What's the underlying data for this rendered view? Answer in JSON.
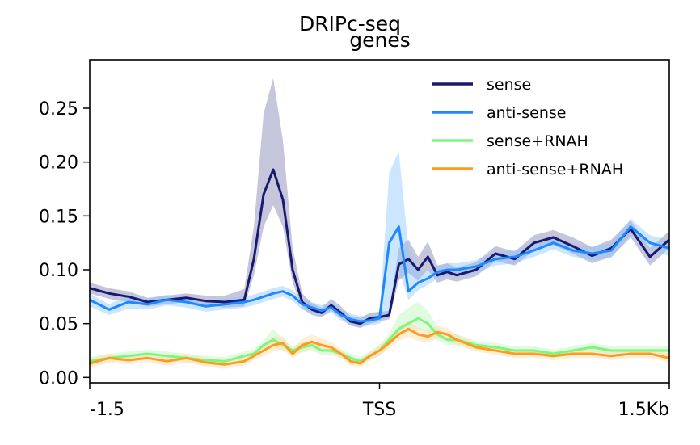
{
  "chart_data": {
    "type": "line",
    "title": "DRIPc-seq",
    "subtitle": "genes",
    "xlabel": "",
    "ylabel": "",
    "xlim": [
      -1.5,
      1.5
    ],
    "ylim": [
      -0.005,
      0.295
    ],
    "x_ticks": [
      {
        "value": -1.5,
        "label": "-1.5"
      },
      {
        "value": 0,
        "label": "TSS"
      },
      {
        "value": 1.5,
        "label": "1.5Kb"
      }
    ],
    "y_ticks": [
      {
        "value": 0.0,
        "label": "0.00"
      },
      {
        "value": 0.05,
        "label": "0.05"
      },
      {
        "value": 0.1,
        "label": "0.10"
      },
      {
        "value": 0.15,
        "label": "0.15"
      },
      {
        "value": 0.2,
        "label": "0.20"
      },
      {
        "value": 0.25,
        "label": "0.25"
      }
    ],
    "grid": false,
    "legend_position": "top-right",
    "x": [
      -1.5,
      -1.4,
      -1.3,
      -1.2,
      -1.1,
      -1.0,
      -0.9,
      -0.8,
      -0.7,
      -0.65,
      -0.6,
      -0.55,
      -0.5,
      -0.45,
      -0.4,
      -0.35,
      -0.3,
      -0.25,
      -0.2,
      -0.15,
      -0.1,
      -0.05,
      0.0,
      0.05,
      0.1,
      0.15,
      0.2,
      0.25,
      0.3,
      0.35,
      0.4,
      0.5,
      0.6,
      0.7,
      0.8,
      0.9,
      1.0,
      1.1,
      1.2,
      1.3,
      1.4,
      1.5
    ],
    "series": [
      {
        "name": "sense",
        "color": "#191970",
        "band_color": "#191970",
        "values": [
          0.083,
          0.078,
          0.075,
          0.07,
          0.072,
          0.074,
          0.071,
          0.07,
          0.072,
          0.11,
          0.17,
          0.193,
          0.165,
          0.1,
          0.07,
          0.063,
          0.06,
          0.067,
          0.06,
          0.052,
          0.05,
          0.055,
          0.056,
          0.058,
          0.105,
          0.11,
          0.1,
          0.112,
          0.095,
          0.098,
          0.095,
          0.1,
          0.115,
          0.11,
          0.125,
          0.13,
          0.122,
          0.113,
          0.12,
          0.138,
          0.112,
          0.128
        ],
        "lower": [
          0.078,
          0.073,
          0.07,
          0.066,
          0.068,
          0.07,
          0.067,
          0.065,
          0.066,
          0.095,
          0.14,
          0.16,
          0.14,
          0.088,
          0.064,
          0.058,
          0.056,
          0.062,
          0.055,
          0.048,
          0.046,
          0.05,
          0.052,
          0.054,
          0.09,
          0.097,
          0.09,
          0.1,
          0.088,
          0.091,
          0.089,
          0.094,
          0.108,
          0.104,
          0.118,
          0.123,
          0.115,
          0.106,
          0.112,
          0.13,
          0.104,
          0.12
        ],
        "upper": [
          0.088,
          0.083,
          0.08,
          0.074,
          0.076,
          0.078,
          0.076,
          0.076,
          0.082,
          0.14,
          0.245,
          0.278,
          0.22,
          0.12,
          0.078,
          0.069,
          0.065,
          0.073,
          0.066,
          0.057,
          0.055,
          0.06,
          0.061,
          0.062,
          0.12,
          0.128,
          0.112,
          0.126,
          0.104,
          0.106,
          0.102,
          0.107,
          0.122,
          0.117,
          0.132,
          0.137,
          0.13,
          0.121,
          0.128,
          0.146,
          0.12,
          0.136
        ]
      },
      {
        "name": "anti-sense",
        "color": "#1e88ff",
        "band_color": "#8ec8ff",
        "values": [
          0.072,
          0.063,
          0.07,
          0.068,
          0.072,
          0.07,
          0.066,
          0.068,
          0.07,
          0.072,
          0.075,
          0.078,
          0.08,
          0.076,
          0.068,
          0.065,
          0.062,
          0.065,
          0.058,
          0.054,
          0.052,
          0.053,
          0.055,
          0.125,
          0.14,
          0.08,
          0.088,
          0.092,
          0.098,
          0.1,
          0.1,
          0.103,
          0.11,
          0.112,
          0.118,
          0.125,
          0.118,
          0.115,
          0.118,
          0.14,
          0.125,
          0.12
        ],
        "lower": [
          0.066,
          0.058,
          0.064,
          0.063,
          0.067,
          0.065,
          0.061,
          0.063,
          0.065,
          0.067,
          0.07,
          0.073,
          0.075,
          0.071,
          0.063,
          0.06,
          0.057,
          0.06,
          0.053,
          0.049,
          0.047,
          0.048,
          0.05,
          0.06,
          0.1,
          0.072,
          0.081,
          0.086,
          0.092,
          0.094,
          0.094,
          0.097,
          0.104,
          0.106,
          0.112,
          0.119,
          0.112,
          0.109,
          0.111,
          0.133,
          0.118,
          0.113
        ],
        "upper": [
          0.078,
          0.068,
          0.076,
          0.073,
          0.077,
          0.075,
          0.071,
          0.073,
          0.075,
          0.077,
          0.08,
          0.083,
          0.085,
          0.081,
          0.073,
          0.07,
          0.067,
          0.07,
          0.063,
          0.059,
          0.057,
          0.058,
          0.06,
          0.19,
          0.21,
          0.12,
          0.1,
          0.099,
          0.104,
          0.106,
          0.106,
          0.109,
          0.116,
          0.118,
          0.124,
          0.131,
          0.124,
          0.121,
          0.125,
          0.147,
          0.132,
          0.127
        ]
      },
      {
        "name": "sense+RNAH",
        "color": "#7ef57e",
        "band_color": "#baf7ba",
        "values": [
          0.015,
          0.018,
          0.02,
          0.022,
          0.02,
          0.018,
          0.016,
          0.015,
          0.02,
          0.022,
          0.03,
          0.035,
          0.03,
          0.025,
          0.028,
          0.03,
          0.025,
          0.025,
          0.022,
          0.018,
          0.015,
          0.02,
          0.025,
          0.035,
          0.045,
          0.05,
          0.055,
          0.05,
          0.04,
          0.035,
          0.035,
          0.03,
          0.028,
          0.025,
          0.025,
          0.022,
          0.025,
          0.028,
          0.025,
          0.025,
          0.025,
          0.025
        ],
        "lower": [
          0.011,
          0.014,
          0.016,
          0.018,
          0.016,
          0.014,
          0.012,
          0.011,
          0.016,
          0.018,
          0.025,
          0.028,
          0.025,
          0.021,
          0.023,
          0.025,
          0.021,
          0.021,
          0.018,
          0.014,
          0.011,
          0.016,
          0.02,
          0.029,
          0.038,
          0.042,
          0.045,
          0.042,
          0.034,
          0.03,
          0.03,
          0.026,
          0.024,
          0.021,
          0.021,
          0.018,
          0.021,
          0.024,
          0.021,
          0.021,
          0.021,
          0.021
        ],
        "upper": [
          0.019,
          0.022,
          0.024,
          0.026,
          0.024,
          0.022,
          0.02,
          0.019,
          0.024,
          0.026,
          0.035,
          0.045,
          0.036,
          0.029,
          0.033,
          0.035,
          0.029,
          0.029,
          0.026,
          0.022,
          0.019,
          0.024,
          0.03,
          0.041,
          0.058,
          0.065,
          0.07,
          0.062,
          0.047,
          0.04,
          0.04,
          0.034,
          0.032,
          0.029,
          0.029,
          0.026,
          0.029,
          0.032,
          0.029,
          0.029,
          0.029,
          0.029
        ]
      },
      {
        "name": "anti-sense+RNAH",
        "color": "#ff9a1a",
        "band_color": "#ffd9a8",
        "values": [
          0.013,
          0.018,
          0.016,
          0.018,
          0.015,
          0.018,
          0.014,
          0.012,
          0.015,
          0.02,
          0.025,
          0.03,
          0.032,
          0.022,
          0.03,
          0.033,
          0.03,
          0.028,
          0.022,
          0.015,
          0.013,
          0.02,
          0.025,
          0.032,
          0.04,
          0.045,
          0.04,
          0.038,
          0.042,
          0.04,
          0.035,
          0.028,
          0.025,
          0.022,
          0.022,
          0.02,
          0.022,
          0.022,
          0.02,
          0.022,
          0.022,
          0.018
        ],
        "lower": [
          0.009,
          0.014,
          0.012,
          0.014,
          0.011,
          0.014,
          0.01,
          0.008,
          0.011,
          0.016,
          0.02,
          0.024,
          0.026,
          0.018,
          0.024,
          0.027,
          0.025,
          0.023,
          0.018,
          0.011,
          0.009,
          0.016,
          0.02,
          0.027,
          0.034,
          0.038,
          0.034,
          0.032,
          0.036,
          0.034,
          0.03,
          0.024,
          0.021,
          0.018,
          0.018,
          0.016,
          0.018,
          0.018,
          0.016,
          0.018,
          0.018,
          0.014
        ],
        "upper": [
          0.017,
          0.022,
          0.02,
          0.022,
          0.019,
          0.022,
          0.018,
          0.016,
          0.019,
          0.024,
          0.03,
          0.038,
          0.038,
          0.026,
          0.036,
          0.04,
          0.036,
          0.033,
          0.026,
          0.019,
          0.017,
          0.024,
          0.03,
          0.038,
          0.048,
          0.052,
          0.046,
          0.044,
          0.048,
          0.046,
          0.04,
          0.032,
          0.029,
          0.026,
          0.026,
          0.024,
          0.026,
          0.026,
          0.024,
          0.026,
          0.026,
          0.022
        ]
      }
    ]
  }
}
